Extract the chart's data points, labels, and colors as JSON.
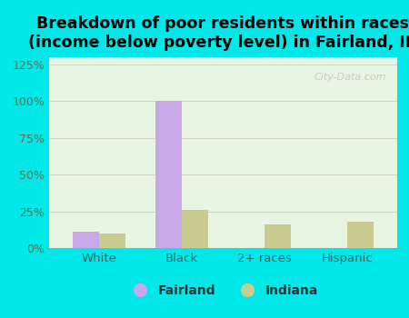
{
  "title": "Breakdown of poor residents within races\n(income below poverty level) in Fairland, IN",
  "categories": [
    "White",
    "Black",
    "2+ races",
    "Hispanic"
  ],
  "fairland_values": [
    11,
    100,
    0,
    0
  ],
  "indiana_values": [
    10,
    26,
    16,
    18
  ],
  "fairland_color": "#c8a8e8",
  "indiana_color": "#c8cc90",
  "background_outer": "#00e8e8",
  "background_inner": "#e8f5e2",
  "ylim": [
    0,
    130
  ],
  "yticks": [
    0,
    25,
    50,
    75,
    100,
    125
  ],
  "ytick_labels": [
    "0%",
    "25%",
    "50%",
    "75%",
    "100%",
    "125%"
  ],
  "bar_width": 0.32,
  "title_fontsize": 12.5,
  "legend_labels": [
    "Fairland",
    "Indiana"
  ],
  "grid_color": "#d0d8c0",
  "ytick_color": "#557755",
  "xtick_color": "#336666",
  "watermark": "City-Data.com"
}
